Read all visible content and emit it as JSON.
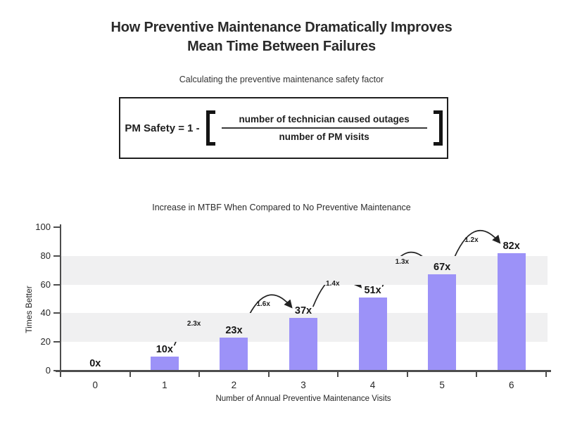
{
  "header": {
    "title_line1": "How Preventive Maintenance Dramatically Improves",
    "title_line2": "Mean Time Between Failures",
    "subtitle": "Calculating the preventive maintenance safety factor"
  },
  "formula": {
    "lhs": "PM Safety = 1 -",
    "numerator": "number of technician caused outages",
    "denominator": "number of PM visits"
  },
  "chart_data": {
    "type": "bar",
    "title": "Increase in MTBF When Compared to No Preventive Maintenance",
    "xlabel": "Number of Annual Preventive Maintenance Visits",
    "ylabel": "Times Better",
    "categories": [
      "0",
      "1",
      "2",
      "3",
      "4",
      "5",
      "6"
    ],
    "values": [
      0,
      10,
      23,
      37,
      51,
      67,
      82
    ],
    "bar_labels": [
      "0x",
      "10x",
      "23x",
      "37x",
      "51x",
      "67x",
      "82x"
    ],
    "growth_labels": [
      "2.3x",
      "1.6x",
      "1.4x",
      "1.3x",
      "1.2x"
    ],
    "ylim": [
      0,
      100
    ],
    "yticks": [
      0,
      20,
      40,
      60,
      80,
      100
    ],
    "shaded_bands": [
      [
        20,
        40
      ],
      [
        60,
        80
      ]
    ],
    "grid": false,
    "legend_position": "none",
    "colors": {
      "bar": "#9c92f8",
      "band": "#f0f0f1",
      "axis": "#4d4d4d",
      "arrow": "#222222"
    }
  }
}
